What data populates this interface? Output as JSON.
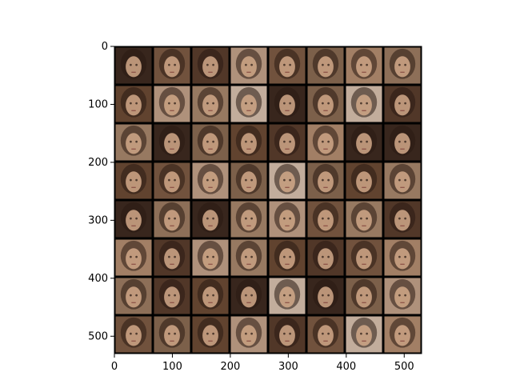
{
  "chart_data": {
    "type": "heatmap",
    "description_kind": "image-grid",
    "grid": {
      "rows": 8,
      "cols": 8
    },
    "xlim": [
      0,
      530
    ],
    "ylim": [
      530,
      0
    ],
    "x_ticks": [
      0,
      100,
      200,
      300,
      400,
      500
    ],
    "y_ticks": [
      0,
      100,
      200,
      300,
      400,
      500
    ],
    "tile_palette": [
      "#6b4a34",
      "#8a6a52",
      "#a7866c",
      "#c2a188",
      "#5a3d2c",
      "#7d5b44",
      "#b48d70",
      "#9c7b62",
      "#d7c0ad",
      "#3e2a20"
    ],
    "cell_color_index": [
      [
        9,
        5,
        4,
        3,
        5,
        1,
        6,
        7
      ],
      [
        0,
        3,
        2,
        8,
        9,
        1,
        8,
        4
      ],
      [
        2,
        9,
        1,
        0,
        4,
        6,
        9,
        9
      ],
      [
        0,
        5,
        3,
        1,
        8,
        1,
        0,
        2
      ],
      [
        9,
        7,
        9,
        2,
        3,
        5,
        2,
        4
      ],
      [
        6,
        4,
        3,
        2,
        0,
        4,
        5,
        6
      ],
      [
        7,
        4,
        0,
        9,
        8,
        9,
        1,
        3
      ],
      [
        5,
        1,
        0,
        3,
        4,
        5,
        8,
        6
      ]
    ]
  }
}
